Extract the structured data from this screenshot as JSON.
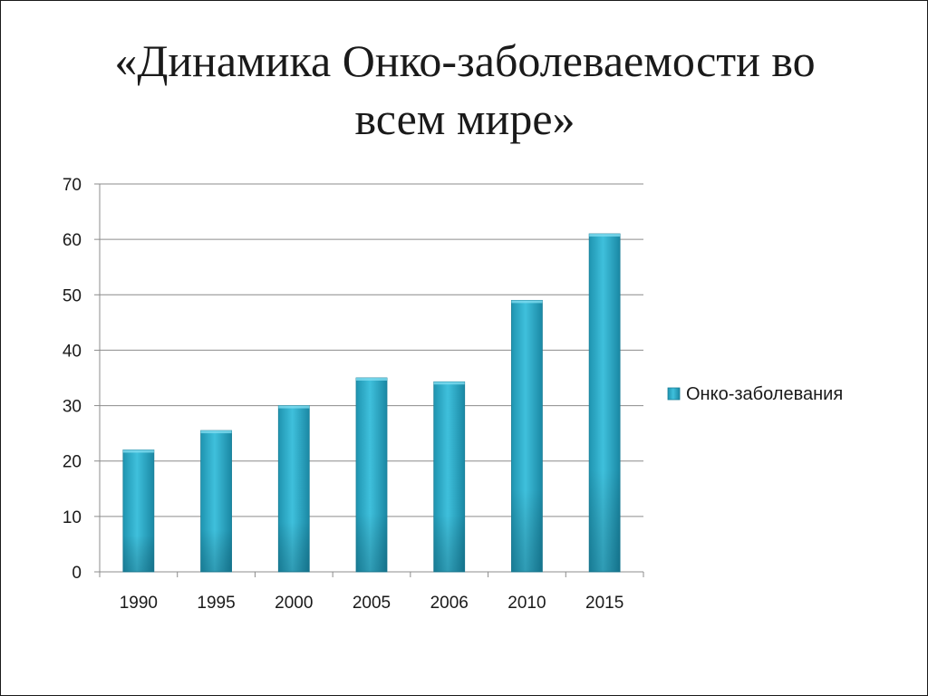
{
  "slide": {
    "title_line1": "«Динамика Онко-заболеваемости во",
    "title_line2": "всем мире»"
  },
  "chart_data": {
    "type": "bar",
    "categories": [
      "1990",
      "1995",
      "2000",
      "2005",
      "2006",
      "2010",
      "2015"
    ],
    "series": [
      {
        "name": "Онко-заболевания",
        "values": [
          22,
          25.5,
          30,
          35,
          34.3,
          49,
          61
        ],
        "color": "#2eaecb"
      }
    ],
    "ylim": [
      0,
      70
    ],
    "yticks": [
      0,
      10,
      20,
      30,
      40,
      50,
      60,
      70
    ],
    "grid": true,
    "legend": "right",
    "title": "",
    "xlabel": "",
    "ylabel": ""
  }
}
